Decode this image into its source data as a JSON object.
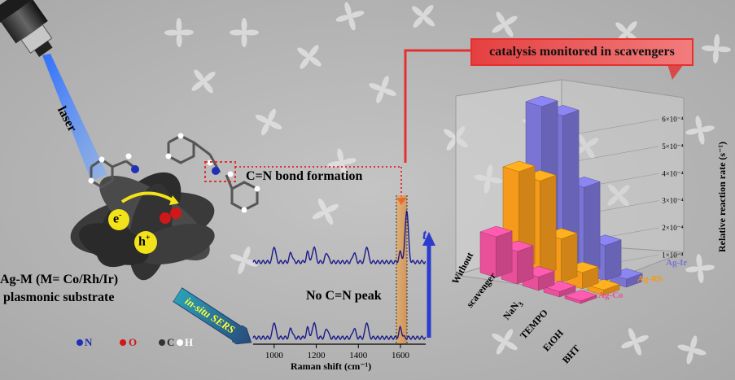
{
  "labels": {
    "laser": "laser",
    "bond_formation": "C=N bond formation",
    "no_peak": "No C=N peak",
    "substrate_line1": "Ag-M (M= Co/Rh/Ir)",
    "substrate_line2": "plasmonic substrate",
    "electron": "e",
    "electron_sup": "-",
    "hole": "h",
    "hole_sup": "+",
    "in_situ": "in-situ  SERS",
    "time": "t",
    "banner": "catalysis monitored in scavengers"
  },
  "legend_atoms": {
    "n": "N",
    "o": "O",
    "c": "C",
    "h": "H"
  },
  "colors": {
    "banner_red": "#e53030",
    "spectrum_line": "#1a1a8c",
    "ag_co": "#e8509a",
    "ag_rh": "#f59a1a",
    "ag_ir": "#7a74d4"
  },
  "chart_data": [
    {
      "type": "line",
      "xlabel": "Raman shift (cm⁻¹)",
      "ylabel": "",
      "x_ticks": [
        "1000",
        "1200",
        "1400",
        "1600"
      ],
      "xlim": [
        900,
        1720
      ],
      "series": [
        {
          "peaks_cm1": [
            1000,
            1080,
            1160,
            1190,
            1250,
            1380,
            1440,
            1600
          ],
          "c_n_peak_cm1": 1630
        },
        {
          "peaks_cm1": [
            1000,
            1080,
            1160,
            1190,
            1250,
            1380,
            1440,
            1600
          ]
        }
      ]
    },
    {
      "type": "bar",
      "ylabel": "Relative reaction rate (s⁻¹)",
      "categories": [
        "Without scavenger",
        "NaN3",
        "TEMPO",
        "EtOH",
        "BHT"
      ],
      "category_labels": [
        "Without",
        "scavenger",
        "NaN",
        "3",
        "TEMPO",
        "EtOH",
        "BHT"
      ],
      "y_ticks": [
        "1×10⁻⁴",
        "2×10⁻⁴",
        "3×10⁻⁴",
        "4×10⁻⁴",
        "5×10⁻⁴",
        "6×10⁻⁴"
      ],
      "ylim": [
        0,
        0.0006
      ],
      "series": [
        {
          "name": "Ag-Co",
          "values": [
            0.00015,
            0.00012,
            5e-05,
            2e-05,
            1e-05
          ]
        },
        {
          "name": "Ag-Rh",
          "values": [
            0.00036,
            0.00035,
            0.00016,
            6e-05,
            2e-05
          ]
        },
        {
          "name": "Ag-Ir",
          "values": [
            0.00057,
            0.00056,
            0.00032,
            0.00013,
            3e-05
          ]
        }
      ]
    }
  ]
}
